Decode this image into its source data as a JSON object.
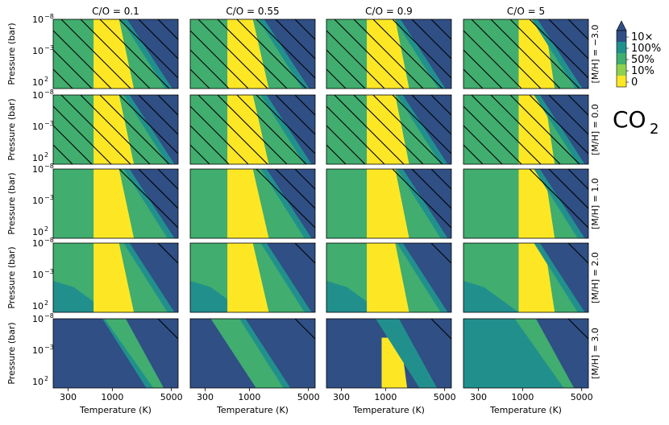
{
  "chart_data": {
    "type": "heatmap",
    "title": "",
    "column_titles": [
      "C/O = 0.1",
      "C/O = 0.55",
      "C/O = 0.9",
      "C/O = 5"
    ],
    "row_titles": [
      "[M/H] = −3.0",
      "[M/H] = 0.0",
      "[M/H] = 1.0",
      "[M/H] = 2.0",
      "[M/H] = 3.0"
    ],
    "xlabel": "Temperature (K)",
    "ylabel": "Pressure (bar)",
    "x_scale": "log",
    "y_scale": "log",
    "xlim": [
      200,
      6000
    ],
    "ylim_bar": [
      1e-08,
      1000
    ],
    "y_inverted": true,
    "x_ticks": [
      "300",
      "1000",
      "5000"
    ],
    "y_ticks": [
      "10",
      "10",
      "10"
    ],
    "y_tick_exponents": [
      "−8",
      "−3",
      "2"
    ],
    "species": "CO",
    "species_subscript": "2",
    "colorbar": {
      "labels": [
        "10×",
        "100%",
        "50%",
        "10%",
        "0"
      ],
      "colors": [
        "#2f4f85",
        "#21908d",
        "#41ad6f",
        "#8fd14f",
        "#fde725"
      ],
      "extend": "max"
    },
    "hatch_color": "#000000"
  }
}
